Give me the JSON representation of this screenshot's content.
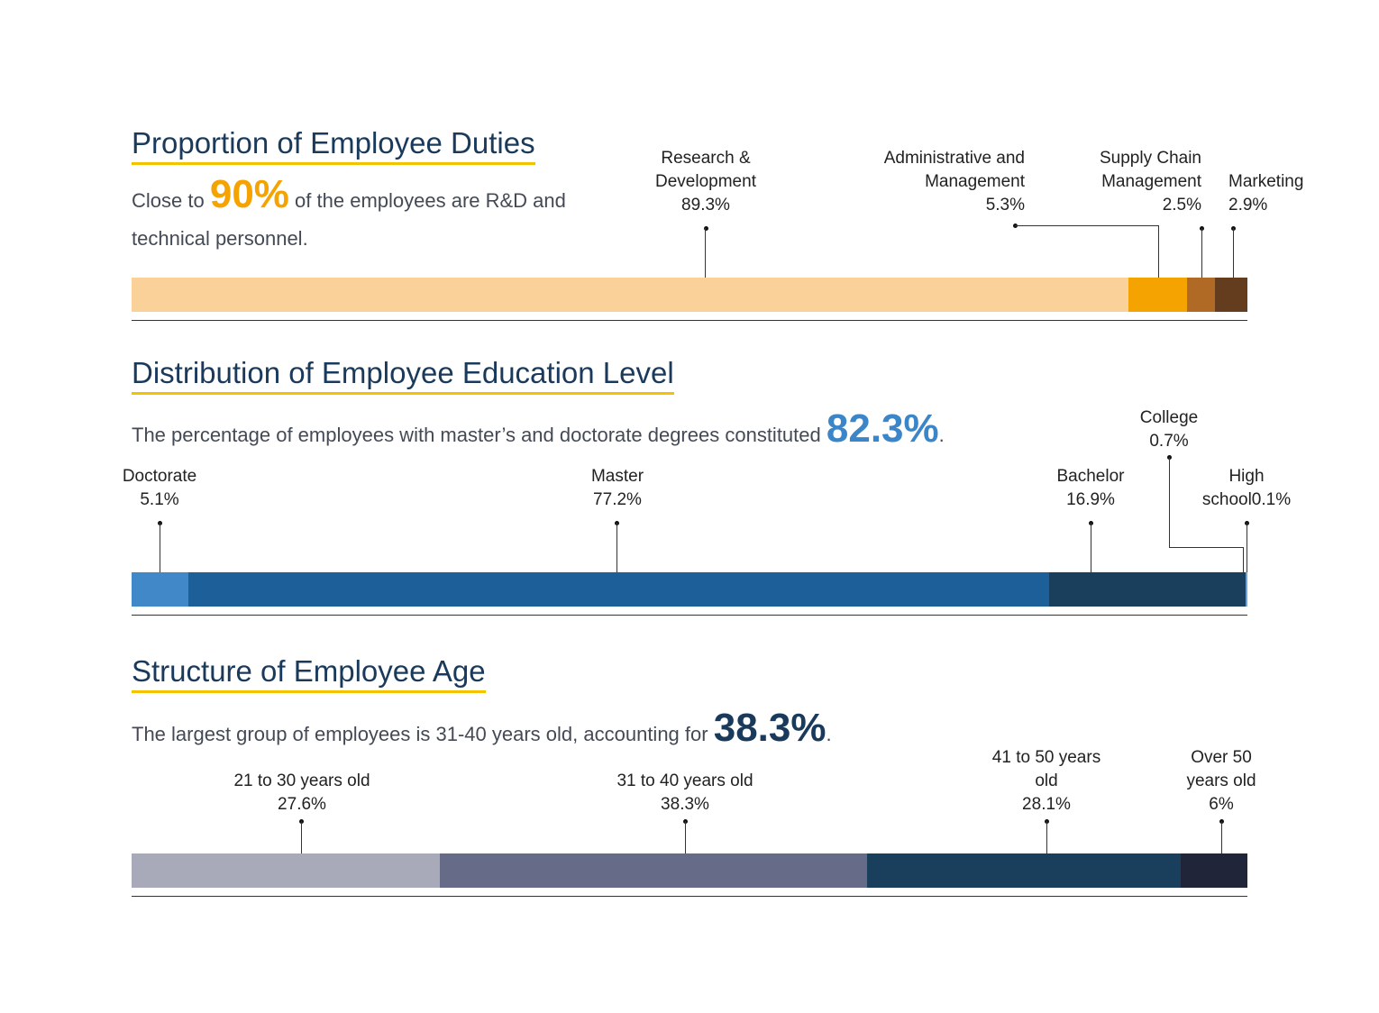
{
  "chart_data": [
    {
      "type": "bar",
      "stacked": "horizontal-100%",
      "title": "Proportion of Employee Duties",
      "subtitle": {
        "pre": "Close to",
        "highlight": "90%",
        "post1": "of the employees are R&D and",
        "post2": "technical personnel."
      },
      "categories": [
        [
          "Research &",
          "Development",
          "89.3%"
        ],
        [
          "Administrative and",
          "Management",
          "5.3%"
        ],
        [
          "Supply Chain",
          "Management",
          "2.5%"
        ],
        [
          "Marketing",
          "2.9%"
        ]
      ],
      "values": [
        89.3,
        5.3,
        2.5,
        2.9
      ],
      "colors": [
        "#fad199",
        "#f4a300",
        "#b06a25",
        "#643c1e"
      ]
    },
    {
      "type": "bar",
      "stacked": "horizontal-100%",
      "title": "Distribution of Employee Education Level",
      "subtitle": {
        "pre": "The percentage of employees with master’s and doctorate degrees constituted",
        "highlight": "82.3%",
        "post1": "."
      },
      "categories": [
        [
          "Doctorate",
          "5.1%"
        ],
        [
          "Master",
          "77.2%"
        ],
        [
          "Bachelor",
          "16.9%"
        ],
        [
          "College",
          "0.7%"
        ],
        [
          "High",
          "school0.1%"
        ]
      ],
      "values": [
        5.1,
        77.2,
        16.9,
        0.7,
        0.1
      ],
      "colors": [
        "#4088c8",
        "#1d5f99",
        "#1a3f5c",
        "#1a3f5c",
        "#6aa8dc"
      ]
    },
    {
      "type": "bar",
      "stacked": "horizontal-100%",
      "title": "Structure of Employee Age",
      "subtitle": {
        "pre": "The largest group of employees is 31-40 years old, accounting for",
        "highlight": "38.3%",
        "post1": "."
      },
      "categories": [
        [
          "21 to 30 years old",
          "27.6%"
        ],
        [
          "31 to 40 years old",
          "38.3%"
        ],
        [
          "41 to 50 years",
          "old",
          "28.1%"
        ],
        [
          "Over 50",
          "years old",
          "6%"
        ]
      ],
      "values": [
        27.6,
        38.3,
        28.1,
        6
      ],
      "colors": [
        "#a8aaba",
        "#666b87",
        "#1a3f5c",
        "#21253a"
      ]
    }
  ]
}
